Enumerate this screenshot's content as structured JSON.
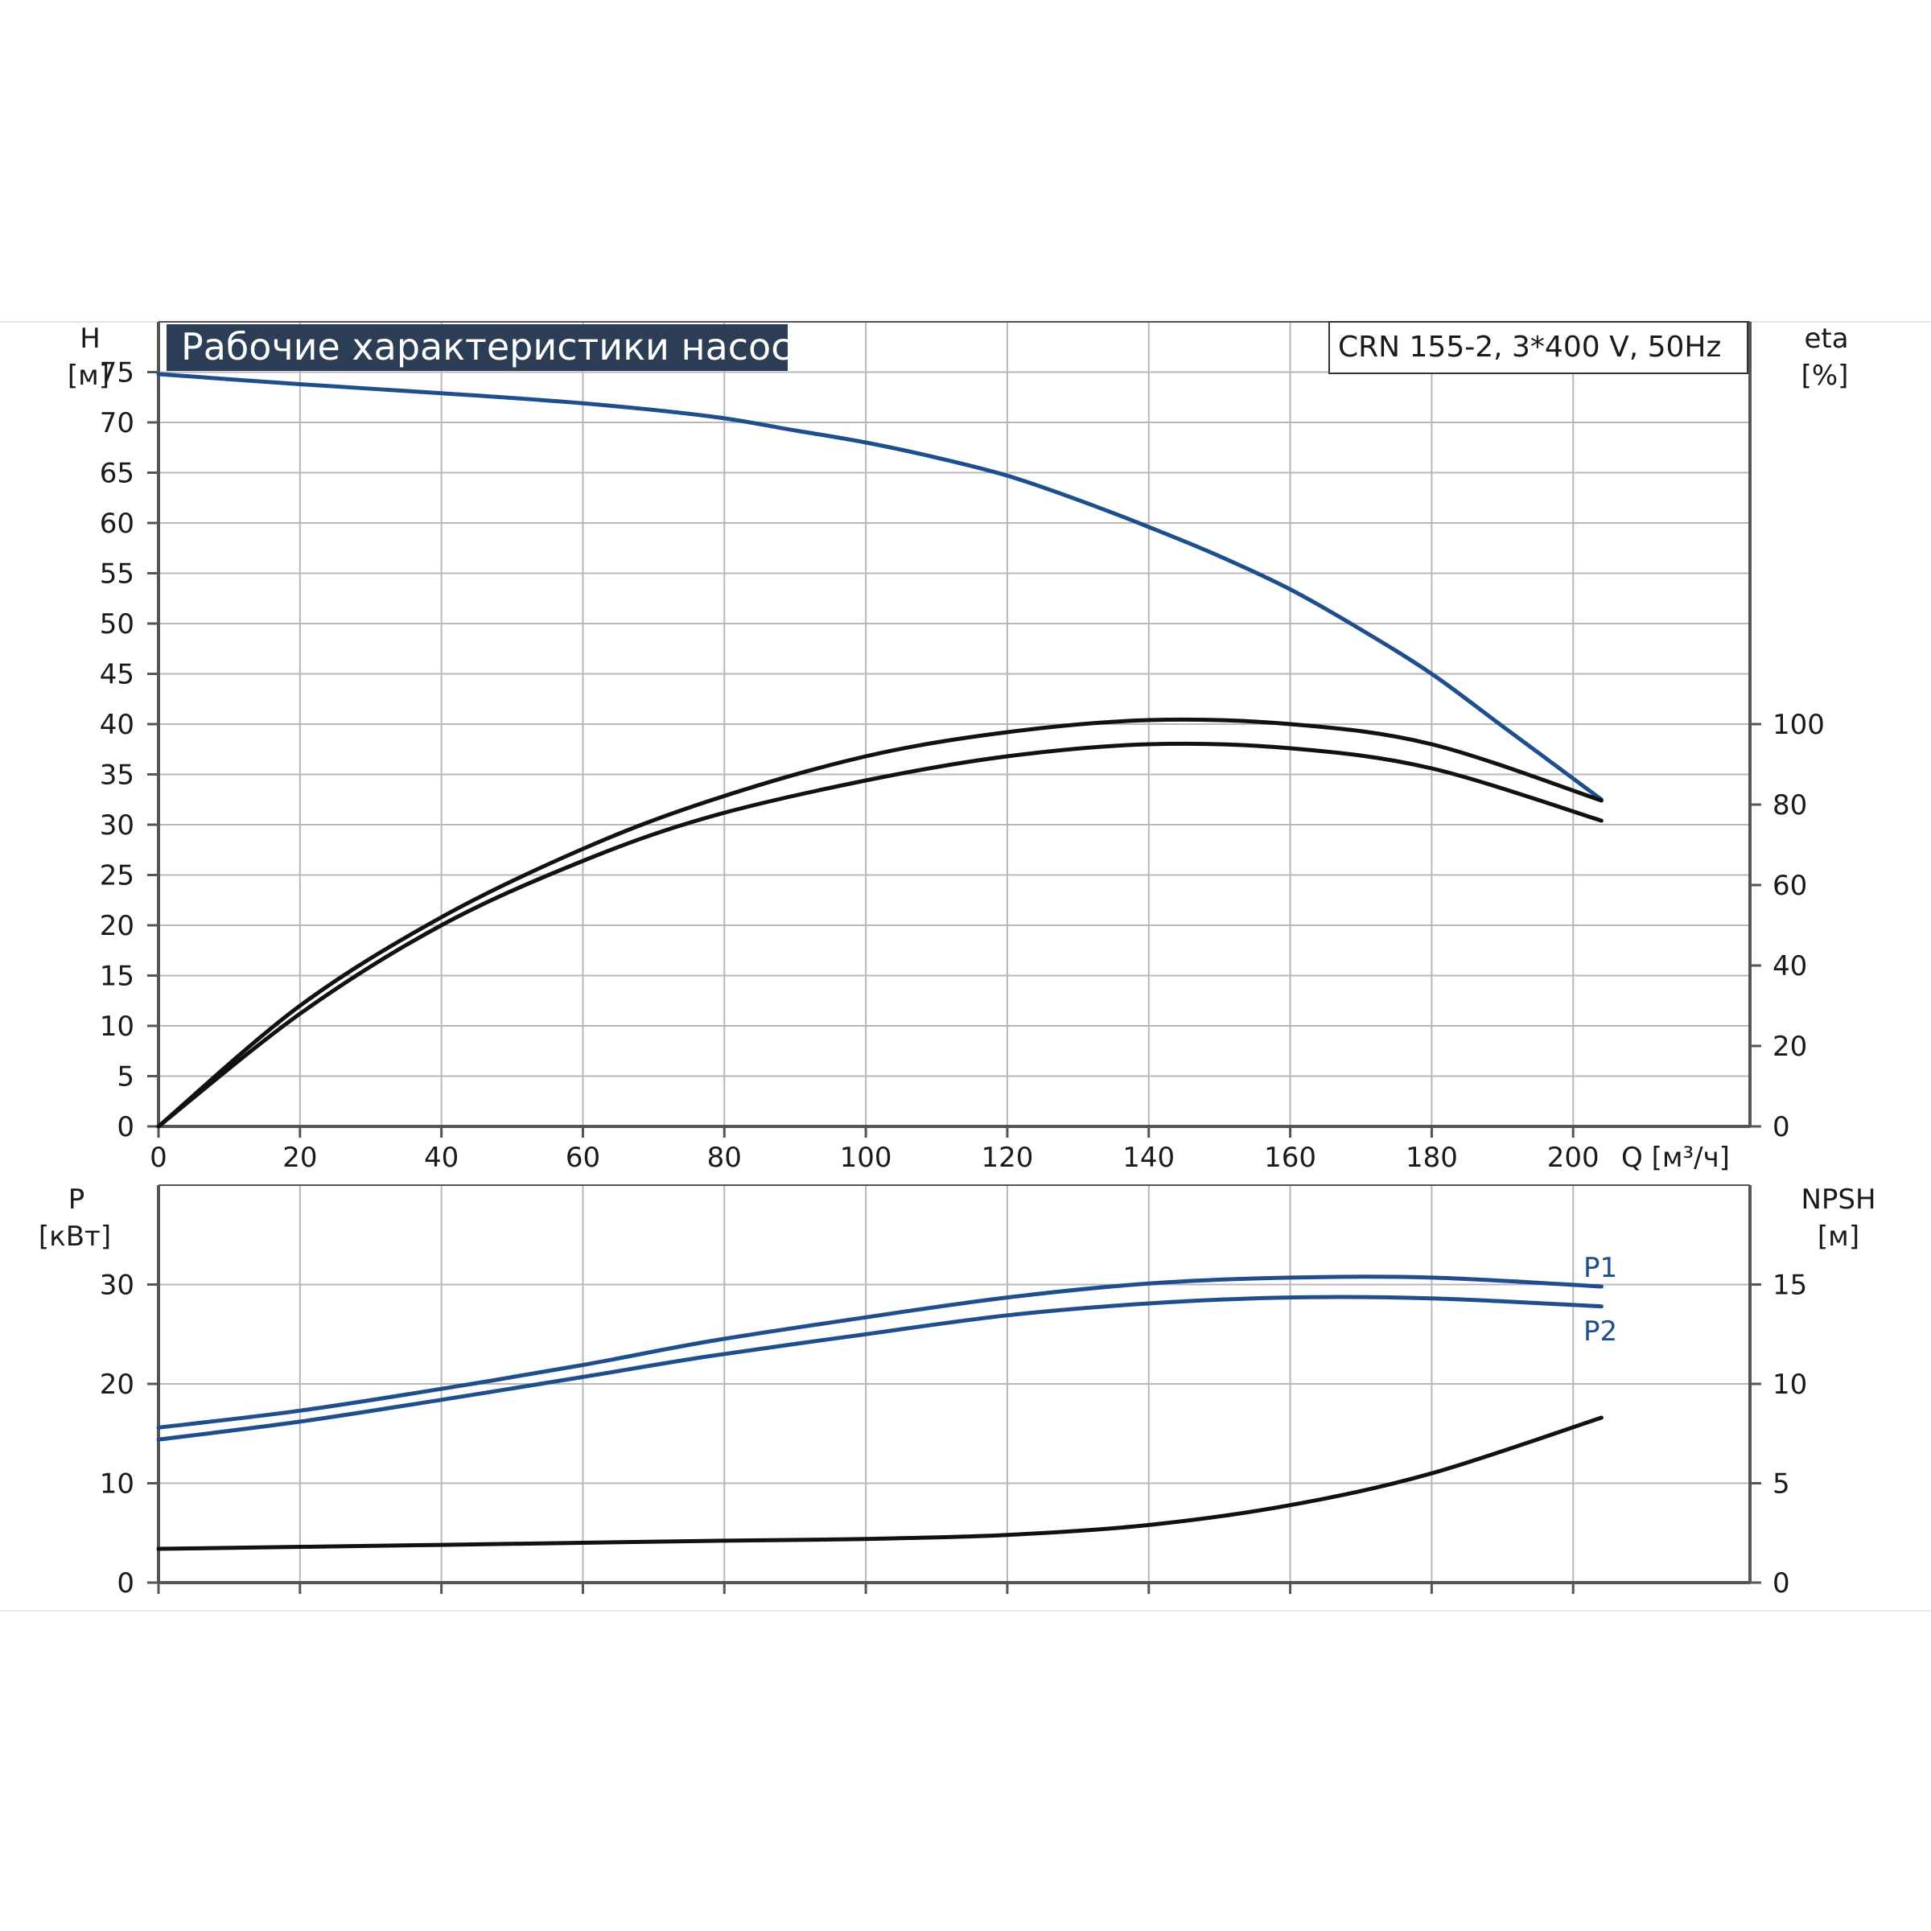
{
  "colors": {
    "grid": "#b8b8b8",
    "frame": "#555555",
    "blue": "#1f4e8c",
    "black": "#111111",
    "title_bg": "#2c3e55"
  },
  "header": {
    "title": "Рабочие характеристики насоса",
    "model": "CRN 155-2, 3*400 V, 50Hz"
  },
  "chart_data": [
    {
      "type": "line",
      "name": "upper",
      "xlim": [
        0,
        225
      ],
      "x_ticks": [
        0,
        20,
        40,
        60,
        80,
        100,
        120,
        140,
        160,
        180,
        200
      ],
      "x_tick_labels": [
        "0",
        "20",
        "40",
        "60",
        "80",
        "100",
        "120",
        "140",
        "160",
        "180",
        "200"
      ],
      "xlabel": "Q [м³/ч]",
      "y_left": {
        "label_top": "H",
        "label_unit": "[м]",
        "lim": [
          0,
          80
        ],
        "ticks": [
          0,
          5,
          10,
          15,
          20,
          25,
          30,
          35,
          40,
          45,
          50,
          55,
          60,
          65,
          70,
          75
        ],
        "tick_labels": [
          "0",
          "5",
          "10",
          "15",
          "20",
          "25",
          "30",
          "35",
          "40",
          "45",
          "50",
          "55",
          "60",
          "65",
          "70",
          "75"
        ]
      },
      "y_right": {
        "label_top": "eta",
        "label_unit": "[%]",
        "lim": [
          0,
          200
        ],
        "ticks": [
          0,
          20,
          40,
          60,
          80,
          100
        ],
        "tick_labels": [
          "0",
          "20",
          "40",
          "60",
          "80",
          "100"
        ]
      },
      "grid": true,
      "series": [
        {
          "id": "head",
          "axis": "left",
          "color": "blue",
          "x": [
            0,
            20,
            40,
            60,
            78,
            90,
            100,
            110,
            120,
            130,
            140,
            150,
            160,
            170,
            180,
            190,
            204
          ],
          "y": [
            74.8,
            73.8,
            72.9,
            71.9,
            70.6,
            69.2,
            68.0,
            66.5,
            64.7,
            62.3,
            59.6,
            56.7,
            53.4,
            49.4,
            45.0,
            39.8,
            32.5
          ]
        },
        {
          "id": "eta-1",
          "axis": "right",
          "color": "black",
          "x": [
            0,
            20,
            40,
            60,
            78,
            100,
            120,
            140,
            160,
            180,
            204
          ],
          "y": [
            0,
            30.0,
            52.0,
            69.0,
            81.0,
            92.0,
            98.0,
            101.0,
            100.0,
            95.0,
            81.0
          ]
        },
        {
          "id": "eta-2",
          "axis": "right",
          "color": "black",
          "x": [
            0,
            20,
            40,
            60,
            78,
            100,
            120,
            140,
            160,
            180,
            204
          ],
          "y": [
            0,
            28.0,
            50.0,
            66.0,
            77.0,
            86.0,
            92.0,
            95.0,
            94.0,
            89.0,
            76.0
          ]
        }
      ]
    },
    {
      "type": "line",
      "name": "lower",
      "xlim": [
        0,
        225
      ],
      "x_ticks": [
        0,
        20,
        40,
        60,
        80,
        100,
        120,
        140,
        160,
        180,
        200
      ],
      "y_left": {
        "label_top": "P",
        "label_unit": "[кВт]",
        "lim": [
          0,
          40
        ],
        "ticks": [
          0,
          10,
          20,
          30
        ],
        "tick_labels": [
          "0",
          "10",
          "20",
          "30"
        ]
      },
      "y_right": {
        "label_top": "NPSH",
        "label_unit": "[м]",
        "lim": [
          0,
          20
        ],
        "ticks": [
          0,
          5,
          10,
          15
        ],
        "tick_labels": [
          "0",
          "5",
          "10",
          "15"
        ]
      },
      "grid": true,
      "series": [
        {
          "id": "P1",
          "name": "P1",
          "axis": "left",
          "color": "blue",
          "x": [
            0,
            20,
            40,
            60,
            78,
            100,
            120,
            140,
            160,
            180,
            204
          ],
          "y": [
            15.6,
            17.3,
            19.5,
            21.9,
            24.3,
            26.7,
            28.7,
            30.1,
            30.7,
            30.7,
            29.8
          ]
        },
        {
          "id": "P2",
          "name": "P2",
          "axis": "left",
          "color": "blue",
          "x": [
            0,
            20,
            40,
            60,
            78,
            100,
            120,
            140,
            160,
            180,
            204
          ],
          "y": [
            14.4,
            16.2,
            18.4,
            20.7,
            22.8,
            25.0,
            26.9,
            28.1,
            28.7,
            28.6,
            27.8
          ]
        },
        {
          "id": "npsh",
          "axis": "right",
          "color": "black",
          "x": [
            0,
            40,
            78,
            100,
            120,
            140,
            160,
            180,
            204
          ],
          "y": [
            1.7,
            1.9,
            2.1,
            2.2,
            2.4,
            2.9,
            3.9,
            5.5,
            8.3
          ]
        }
      ],
      "series_labels": [
        "P1",
        "P2"
      ]
    }
  ]
}
